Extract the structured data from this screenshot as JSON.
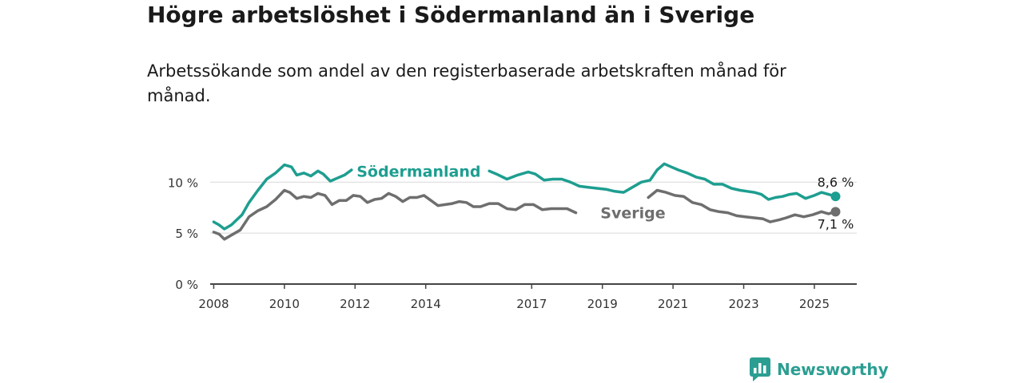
{
  "title": "Högre arbetslöshet i Södermanland än i Sverige",
  "subtitle": "Arbetssökande som andel av den registerbaserade arbetskraften månad för månad.",
  "brand": {
    "name": "Newsworthy",
    "icon": "newsworthy-logo-icon",
    "color": "#2b9e92"
  },
  "chart_data": {
    "type": "line",
    "xlim": [
      2007.9,
      2026.2
    ],
    "ylim": [
      0,
      13
    ],
    "x_ticks": [
      2008,
      2010,
      2012,
      2014,
      2017,
      2019,
      2021,
      2023,
      2025
    ],
    "x_tick_labels": [
      "2008",
      "2010",
      "2012",
      "2014",
      "2017",
      "2019",
      "2021",
      "2023",
      "2025"
    ],
    "y_ticks": [
      0,
      5,
      10
    ],
    "y_tick_labels": [
      "0 %",
      "5 %",
      "10 %"
    ],
    "grid": true,
    "series": [
      {
        "name": "Södermanland",
        "color": "#1d9e90",
        "end_label": "8,6 %",
        "points": [
          [
            2008.0,
            6.1
          ],
          [
            2008.15,
            5.8
          ],
          [
            2008.3,
            5.4
          ],
          [
            2008.5,
            5.8
          ],
          [
            2008.8,
            6.8
          ],
          [
            2009.0,
            8.0
          ],
          [
            2009.25,
            9.2
          ],
          [
            2009.5,
            10.3
          ],
          [
            2009.75,
            10.9
          ],
          [
            2010.0,
            11.7
          ],
          [
            2010.2,
            11.5
          ],
          [
            2010.35,
            10.7
          ],
          [
            2010.55,
            10.9
          ],
          [
            2010.75,
            10.6
          ],
          [
            2010.95,
            11.1
          ],
          [
            2011.1,
            10.8
          ],
          [
            2011.3,
            10.1
          ],
          [
            2011.5,
            10.4
          ],
          [
            2011.7,
            10.7
          ],
          [
            2011.9,
            11.2
          ],
          [
            2012.2,
            11.0
          ],
          [
            2012.5,
            11.1
          ],
          [
            2012.8,
            11.0
          ],
          [
            2013.1,
            10.8
          ],
          [
            2013.4,
            10.7
          ],
          [
            2013.7,
            10.9
          ],
          [
            2014.0,
            10.6
          ],
          [
            2014.3,
            10.4
          ],
          [
            2014.6,
            10.6
          ],
          [
            2014.9,
            10.3
          ],
          [
            2015.2,
            10.6
          ],
          [
            2015.5,
            10.8
          ],
          [
            2015.8,
            11.1
          ],
          [
            2016.0,
            10.8
          ],
          [
            2016.3,
            10.3
          ],
          [
            2016.6,
            10.7
          ],
          [
            2016.9,
            11.0
          ],
          [
            2017.1,
            10.8
          ],
          [
            2017.35,
            10.2
          ],
          [
            2017.6,
            10.3
          ],
          [
            2017.85,
            10.3
          ],
          [
            2018.1,
            10.0
          ],
          [
            2018.35,
            9.6
          ],
          [
            2018.6,
            9.5
          ],
          [
            2018.85,
            9.4
          ],
          [
            2019.1,
            9.3
          ],
          [
            2019.35,
            9.1
          ],
          [
            2019.6,
            9.0
          ],
          [
            2019.85,
            9.5
          ],
          [
            2020.1,
            10.0
          ],
          [
            2020.35,
            10.2
          ],
          [
            2020.55,
            11.2
          ],
          [
            2020.75,
            11.8
          ],
          [
            2020.95,
            11.5
          ],
          [
            2021.15,
            11.2
          ],
          [
            2021.4,
            10.9
          ],
          [
            2021.65,
            10.5
          ],
          [
            2021.9,
            10.3
          ],
          [
            2022.15,
            9.8
          ],
          [
            2022.4,
            9.8
          ],
          [
            2022.65,
            9.4
          ],
          [
            2022.9,
            9.2
          ],
          [
            2023.1,
            9.1
          ],
          [
            2023.3,
            9.0
          ],
          [
            2023.5,
            8.8
          ],
          [
            2023.7,
            8.3
          ],
          [
            2023.9,
            8.5
          ],
          [
            2024.1,
            8.6
          ],
          [
            2024.3,
            8.8
          ],
          [
            2024.5,
            8.9
          ],
          [
            2024.75,
            8.4
          ],
          [
            2025.0,
            8.7
          ],
          [
            2025.2,
            9.0
          ],
          [
            2025.4,
            8.8
          ],
          [
            2025.6,
            8.6
          ]
        ]
      },
      {
        "name": "Sverige",
        "color": "#6e6e6e",
        "end_label": "7,1 %",
        "points": [
          [
            2008.0,
            5.1
          ],
          [
            2008.15,
            4.9
          ],
          [
            2008.3,
            4.4
          ],
          [
            2008.5,
            4.8
          ],
          [
            2008.75,
            5.3
          ],
          [
            2009.0,
            6.6
          ],
          [
            2009.25,
            7.2
          ],
          [
            2009.5,
            7.6
          ],
          [
            2009.75,
            8.3
          ],
          [
            2010.0,
            9.2
          ],
          [
            2010.15,
            9.0
          ],
          [
            2010.35,
            8.4
          ],
          [
            2010.55,
            8.6
          ],
          [
            2010.75,
            8.5
          ],
          [
            2010.95,
            8.9
          ],
          [
            2011.15,
            8.7
          ],
          [
            2011.35,
            7.8
          ],
          [
            2011.55,
            8.2
          ],
          [
            2011.75,
            8.2
          ],
          [
            2011.95,
            8.7
          ],
          [
            2012.15,
            8.6
          ],
          [
            2012.35,
            8.0
          ],
          [
            2012.55,
            8.3
          ],
          [
            2012.75,
            8.4
          ],
          [
            2012.95,
            8.9
          ],
          [
            2013.15,
            8.6
          ],
          [
            2013.35,
            8.1
          ],
          [
            2013.55,
            8.5
          ],
          [
            2013.75,
            8.5
          ],
          [
            2013.95,
            8.7
          ],
          [
            2014.15,
            8.2
          ],
          [
            2014.35,
            7.7
          ],
          [
            2014.55,
            7.8
          ],
          [
            2014.75,
            7.9
          ],
          [
            2014.95,
            8.1
          ],
          [
            2015.15,
            8.0
          ],
          [
            2015.35,
            7.6
          ],
          [
            2015.55,
            7.6
          ],
          [
            2015.8,
            7.9
          ],
          [
            2016.05,
            7.9
          ],
          [
            2016.3,
            7.4
          ],
          [
            2016.55,
            7.3
          ],
          [
            2016.8,
            7.8
          ],
          [
            2017.05,
            7.8
          ],
          [
            2017.3,
            7.3
          ],
          [
            2017.55,
            7.4
          ],
          [
            2017.8,
            7.4
          ],
          [
            2018.0,
            7.4
          ],
          [
            2018.25,
            7.0
          ],
          [
            2018.5,
            6.8
          ],
          [
            2018.75,
            6.8
          ],
          [
            2019.0,
            6.9
          ],
          [
            2019.25,
            6.8
          ],
          [
            2019.5,
            6.9
          ],
          [
            2019.75,
            7.2
          ],
          [
            2020.05,
            7.6
          ],
          [
            2020.3,
            8.5
          ],
          [
            2020.55,
            9.2
          ],
          [
            2020.8,
            9.0
          ],
          [
            2021.05,
            8.7
          ],
          [
            2021.3,
            8.6
          ],
          [
            2021.55,
            8.0
          ],
          [
            2021.8,
            7.8
          ],
          [
            2022.05,
            7.3
          ],
          [
            2022.3,
            7.1
          ],
          [
            2022.55,
            7.0
          ],
          [
            2022.8,
            6.7
          ],
          [
            2023.05,
            6.6
          ],
          [
            2023.3,
            6.5
          ],
          [
            2023.55,
            6.4
          ],
          [
            2023.75,
            6.1
          ],
          [
            2024.0,
            6.3
          ],
          [
            2024.2,
            6.5
          ],
          [
            2024.45,
            6.8
          ],
          [
            2024.7,
            6.6
          ],
          [
            2024.95,
            6.8
          ],
          [
            2025.2,
            7.1
          ],
          [
            2025.4,
            6.9
          ],
          [
            2025.6,
            7.1
          ]
        ]
      }
    ],
    "annotations": [
      {
        "text": "Södermanland",
        "series": 0,
        "x": 2012.0,
        "y": 11.1,
        "gap_x": [
          2011.9,
          2015.8
        ]
      },
      {
        "text": "Sverige",
        "series": 1,
        "x": 2018.9,
        "y": 7.0,
        "gap_x": [
          2018.4,
          2020.1
        ]
      }
    ]
  }
}
